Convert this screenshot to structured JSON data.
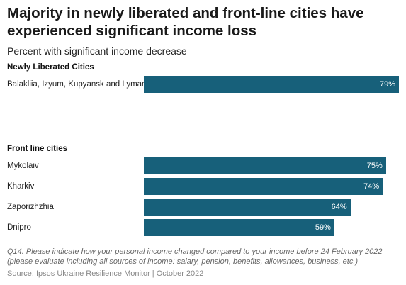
{
  "title": "Majority in newly liberated and front-line cities have experienced significant income loss",
  "subtitle": "Percent with significant income decrease",
  "chart_data": {
    "type": "bar",
    "orientation": "horizontal",
    "title": "Majority in newly liberated and front-line cities have experienced significant income loss",
    "subtitle": "Percent with significant income decrease",
    "xlim": [
      0,
      80
    ],
    "grid": false,
    "groups": [
      {
        "label": "Newly Liberated Cities",
        "items": [
          {
            "category": "Balakliia, Izyum, Kupyansk and Lyman",
            "value": 79,
            "label": "79%"
          }
        ]
      },
      {
        "label": "Front line cities",
        "items": [
          {
            "category": "Mykolaiv",
            "value": 75,
            "label": "75%"
          },
          {
            "category": "Kharkiv",
            "value": 74,
            "label": "74%"
          },
          {
            "category": "Zaporizhzhia",
            "value": 64,
            "label": "64%"
          },
          {
            "category": "Dnipro",
            "value": 59,
            "label": "59%"
          }
        ]
      }
    ],
    "bar_color": "#17607a"
  },
  "note": "Q14. Please indicate how your personal income changed compared to your income before 24 February 2022 (please evaluate including all sources of income: salary, pension, benefits, allowances, business, etc.)",
  "source": "Source: Ipsos Ukraine Resilience Monitor | October 2022"
}
